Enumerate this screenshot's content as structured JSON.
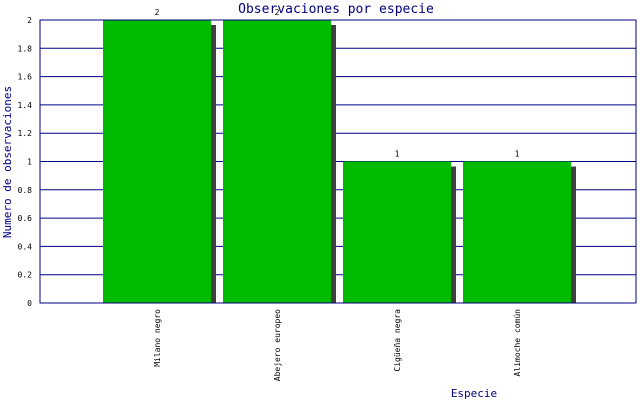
{
  "chart_data": {
    "type": "bar",
    "title": "Observaciones por especie",
    "xlabel": "Especie",
    "ylabel": "Numero de observaciones",
    "categories": [
      "Milano negro",
      "Abejero europeo",
      "Cigüeña negra",
      "Alimoche común"
    ],
    "values": [
      2,
      2,
      1,
      1
    ],
    "data_labels": [
      "2",
      "2",
      "1",
      "1"
    ],
    "ylim": [
      0,
      2
    ],
    "yticks": [
      "0",
      "0.2",
      "0.4",
      "0.6",
      "0.8",
      "1",
      "1.2",
      "1.4",
      "1.6",
      "1.8",
      "2"
    ],
    "grid": true,
    "legend": "none",
    "colors": {
      "bar": "#00bb00",
      "shadow": "#404040",
      "grid": "#000080",
      "axis": "#000080",
      "text": "#000080"
    }
  }
}
